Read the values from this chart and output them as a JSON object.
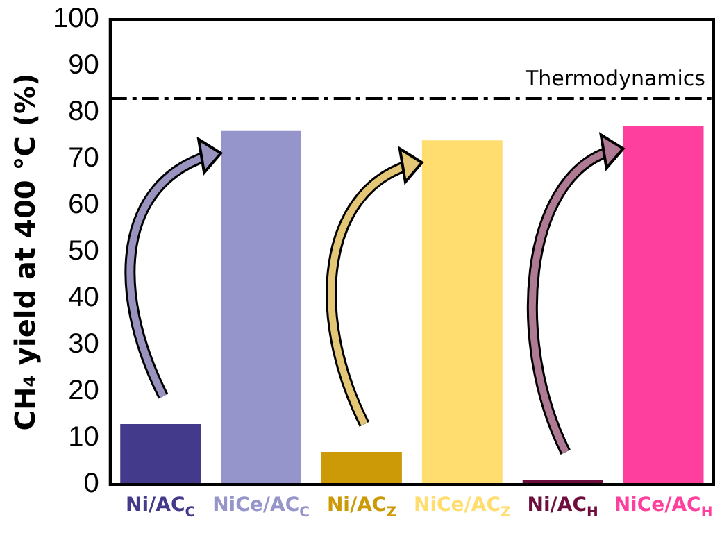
{
  "chart_data": {
    "type": "bar",
    "ylabel": "CH₄ yield at 400 °C (%)",
    "categories": [
      "Ni/AC$_{C}$",
      "NiCe/AC$_{C}$",
      "Ni/AC$_{Z}$",
      "NiCe/AC$_{Z}$",
      "Ni/AC$_{H}$",
      "NiCe/AC$_{H}$"
    ],
    "values": [
      13,
      76,
      7,
      74,
      1,
      77
    ],
    "colors": [
      "#433a8b",
      "#9594cb",
      "#cc9a06",
      "#ffdd6e",
      "#6e0e3c",
      "#ff3f9d"
    ],
    "ylim": [
      0,
      100
    ],
    "yticks": [
      0,
      10,
      20,
      30,
      40,
      50,
      60,
      70,
      80,
      90,
      100
    ],
    "ref_lines": [
      {
        "axis": "y",
        "value": 83,
        "label": "Thermodynamics",
        "color": "#000000",
        "line_style": "dashdot"
      }
    ]
  }
}
